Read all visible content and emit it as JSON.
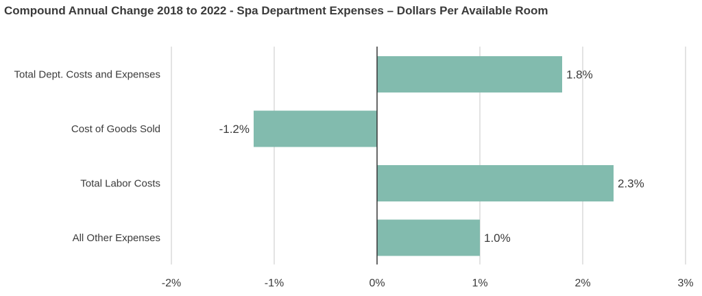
{
  "chart_data": {
    "type": "bar",
    "orientation": "horizontal",
    "title": "Compound Annual Change 2018 to 2022 - Spa Department Expenses – Dollars Per Available Room",
    "categories": [
      "Total Dept. Costs and Expenses",
      "Cost of Goods Sold",
      "Total Labor Costs",
      "All Other Expenses"
    ],
    "values": [
      1.8,
      -1.2,
      2.3,
      1.0
    ],
    "data_labels": [
      "1.8%",
      "-1.2%",
      "2.3%",
      "1.0%"
    ],
    "xlim": [
      -2,
      3
    ],
    "xticks": [
      -2,
      -1,
      0,
      1,
      2,
      3
    ],
    "xtick_labels": [
      "-2%",
      "-1%",
      "0%",
      "1%",
      "2%",
      "3%"
    ],
    "grid": "vertical",
    "bar_color": "#82bbae",
    "grid_color": "#e3e3e3",
    "zero_line_color": "#333333"
  }
}
